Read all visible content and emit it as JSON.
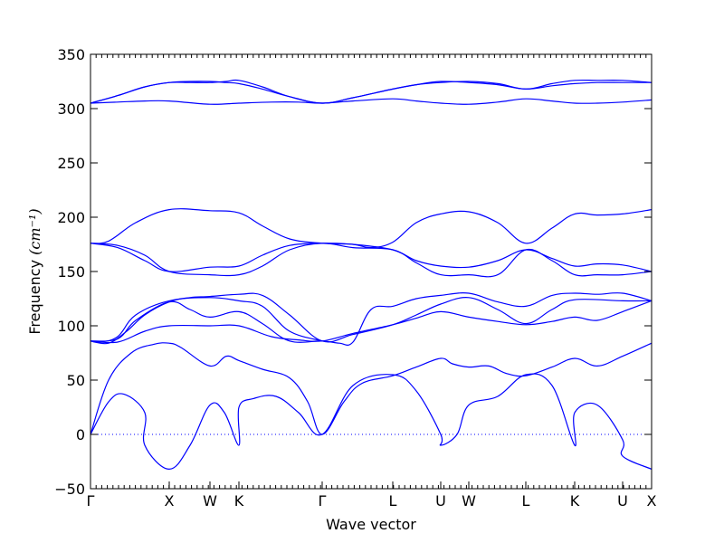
{
  "chart_data": {
    "type": "line",
    "title": "",
    "xlabel": "Wave vector",
    "ylabel": "Frequency",
    "ylabel_unit": "(cm⁻¹)",
    "ylim": [
      -50,
      350
    ],
    "yticks": [
      -50,
      0,
      50,
      100,
      150,
      200,
      250,
      300,
      350
    ],
    "grid": false,
    "legend": "none",
    "line_color": "#0000ff",
    "zero_reference_line": true,
    "xlim": [
      0,
      6.2
    ],
    "x_high_symmetry_points": [
      {
        "label": "Γ",
        "x": 0.0
      },
      {
        "label": "X",
        "x": 0.87
      },
      {
        "label": "W",
        "x": 1.32
      },
      {
        "label": "K",
        "x": 1.64
      },
      {
        "label": "Γ",
        "x": 2.56
      },
      {
        "label": "L",
        "x": 3.34
      },
      {
        "label": "U",
        "x": 3.87
      },
      {
        "label": "W",
        "x": 4.18
      },
      {
        "label": "L",
        "x": 4.81
      },
      {
        "label": "K",
        "x": 5.35
      },
      {
        "label": "U",
        "x": 5.88
      },
      {
        "label": "X",
        "x": 6.2
      }
    ],
    "series": [
      {
        "x": [
          0,
          0.2,
          0.37,
          0.6,
          0.6,
          0.87,
          1.1,
          1.32,
          1.48,
          1.64,
          1.64,
          1.8,
          2.05,
          2.3,
          2.56,
          2.9,
          3.34,
          3.6,
          3.87,
          3.87,
          4.05,
          4.18,
          4.5,
          4.81,
          5.1,
          5.35,
          5.35,
          5.6,
          5.88,
          5.88,
          6.2
        ],
        "values": [
          0,
          30,
          37,
          20,
          -10,
          -32,
          -10,
          27,
          20,
          -10,
          25,
          33,
          35,
          20,
          0,
          45,
          55,
          40,
          0,
          -10,
          0,
          27,
          35,
          55,
          45,
          -10,
          20,
          27,
          -5,
          -20,
          -32
        ]
      },
      {
        "x": [
          0,
          0.2,
          0.45,
          0.7,
          0.87,
          1.0,
          1.32,
          1.5,
          1.64,
          1.9,
          2.2,
          2.4,
          2.56,
          2.8,
          3.0,
          3.34,
          3.6,
          3.87,
          4.0,
          4.18,
          4.4,
          4.6,
          4.81,
          5.1,
          5.35,
          5.6,
          5.88,
          6.2
        ],
        "values": [
          0,
          50,
          75,
          83,
          84,
          80,
          63,
          72,
          68,
          60,
          52,
          30,
          0,
          30,
          47,
          54,
          62,
          70,
          65,
          62,
          63,
          56,
          54,
          62,
          70,
          63,
          72,
          84
        ]
      },
      {
        "x": [
          0,
          0.1,
          0.3,
          0.5,
          0.87,
          1.32,
          1.64,
          1.9,
          2.2,
          2.56
        ],
        "values": [
          86,
          85,
          90,
          110,
          123,
          126,
          123,
          118,
          95,
          86
        ]
      },
      {
        "x": [
          0,
          0.2,
          0.4,
          0.6,
          0.87,
          1.1,
          1.32,
          1.64,
          1.9,
          2.2,
          2.56,
          2.9,
          3.34,
          3.6,
          3.87,
          4.18,
          4.5,
          4.81,
          5.1,
          5.35,
          5.88,
          6.2
        ],
        "values": [
          86,
          84,
          95,
          110,
          122,
          126,
          127,
          129,
          128,
          110,
          86,
          92,
          101,
          110,
          120,
          126,
          115,
          102,
          115,
          124,
          123,
          123
        ]
      },
      {
        "x": [
          0,
          0.3,
          0.5,
          0.87,
          1.1,
          1.32,
          1.64,
          1.9,
          2.2,
          2.56,
          2.75,
          2.9,
          3.1,
          3.34,
          3.6,
          3.87,
          4.18,
          4.5,
          4.81,
          5.1,
          5.35,
          5.6,
          5.88,
          6.2
        ],
        "values": [
          86,
          88,
          105,
          122,
          115,
          108,
          113,
          102,
          86,
          86,
          84,
          85,
          115,
          118,
          125,
          128,
          130,
          122,
          118,
          128,
          130,
          129,
          130,
          123
        ]
      },
      {
        "x": [
          0,
          0.3,
          0.6,
          0.87,
          1.32,
          1.64,
          2.0,
          2.3,
          2.56,
          2.9,
          3.34,
          3.6,
          3.87,
          4.18,
          4.5,
          4.81,
          5.1,
          5.35,
          5.6,
          5.88,
          6.2
        ],
        "values": [
          86,
          85,
          95,
          100,
          100,
          100,
          90,
          87,
          86,
          93,
          101,
          107,
          113,
          108,
          104,
          101,
          104,
          108,
          105,
          113,
          123
        ]
      },
      {
        "x": [
          0,
          0.3,
          0.6,
          0.87,
          1.32,
          1.64,
          1.9,
          2.2,
          2.56,
          2.9,
          3.34,
          3.6,
          3.87,
          4.18,
          4.5,
          4.81,
          5.1,
          5.35,
          5.6,
          5.88,
          6.2
        ],
        "values": [
          176,
          174,
          165,
          150,
          147,
          147,
          155,
          170,
          176,
          172,
          170,
          158,
          147,
          147,
          147,
          170,
          160,
          147,
          147,
          147,
          150
        ]
      },
      {
        "x": [
          0,
          0.3,
          0.6,
          0.87,
          1.32,
          1.64,
          1.9,
          2.2,
          2.56,
          2.9,
          3.34,
          3.6,
          3.87,
          4.18,
          4.5,
          4.81,
          5.1,
          5.35,
          5.6,
          5.88,
          6.2
        ],
        "values": [
          176,
          172,
          160,
          150,
          154,
          155,
          165,
          174,
          176,
          175,
          170,
          160,
          155,
          154,
          160,
          170,
          162,
          155,
          157,
          156,
          150
        ]
      },
      {
        "x": [
          0,
          0.2,
          0.5,
          0.87,
          1.32,
          1.64,
          1.9,
          2.2,
          2.56,
          2.9,
          3.1,
          3.34,
          3.6,
          3.87,
          4.18,
          4.5,
          4.81,
          5.1,
          5.35,
          5.6,
          5.88,
          6.2
        ],
        "values": [
          176,
          178,
          195,
          207,
          206,
          204,
          192,
          180,
          176,
          175,
          172,
          177,
          195,
          203,
          205,
          195,
          176,
          190,
          203,
          202,
          203,
          207
        ]
      },
      {
        "x": [
          0,
          0.3,
          0.6,
          0.87,
          1.32,
          1.64,
          2.0,
          2.3,
          2.56,
          2.9,
          3.34,
          3.6,
          3.87,
          4.18,
          4.5,
          4.81,
          5.1,
          5.35,
          5.6,
          5.88,
          6.2
        ],
        "values": [
          305,
          306,
          307,
          307,
          304,
          305,
          306,
          306,
          305,
          307,
          309,
          307,
          305,
          304,
          306,
          309,
          307,
          305,
          305,
          306,
          308
        ]
      },
      {
        "x": [
          0,
          0.3,
          0.6,
          0.87,
          1.1,
          1.32,
          1.5,
          1.64,
          1.9,
          2.2,
          2.56,
          2.9,
          3.34,
          3.6,
          3.87,
          4.18,
          4.5,
          4.81,
          5.1,
          5.35,
          5.6,
          5.88,
          6.2
        ],
        "values": [
          305,
          312,
          320,
          324,
          325,
          325,
          324,
          323,
          318,
          311,
          305,
          310,
          318,
          322,
          324,
          325,
          323,
          318,
          323,
          326,
          326,
          326,
          324
        ]
      },
      {
        "x": [
          0,
          0.3,
          0.6,
          0.87,
          1.1,
          1.32,
          1.5,
          1.64,
          1.9,
          2.2,
          2.56,
          2.9,
          3.34,
          3.6,
          3.87,
          4.18,
          4.5,
          4.81,
          5.1,
          5.35,
          5.6,
          5.88,
          6.2
        ],
        "values": [
          305,
          312,
          320,
          324,
          324,
          324,
          325,
          326,
          320,
          311,
          305,
          310,
          318,
          322,
          325,
          324,
          322,
          318,
          321,
          323,
          324,
          324,
          324
        ]
      }
    ]
  }
}
